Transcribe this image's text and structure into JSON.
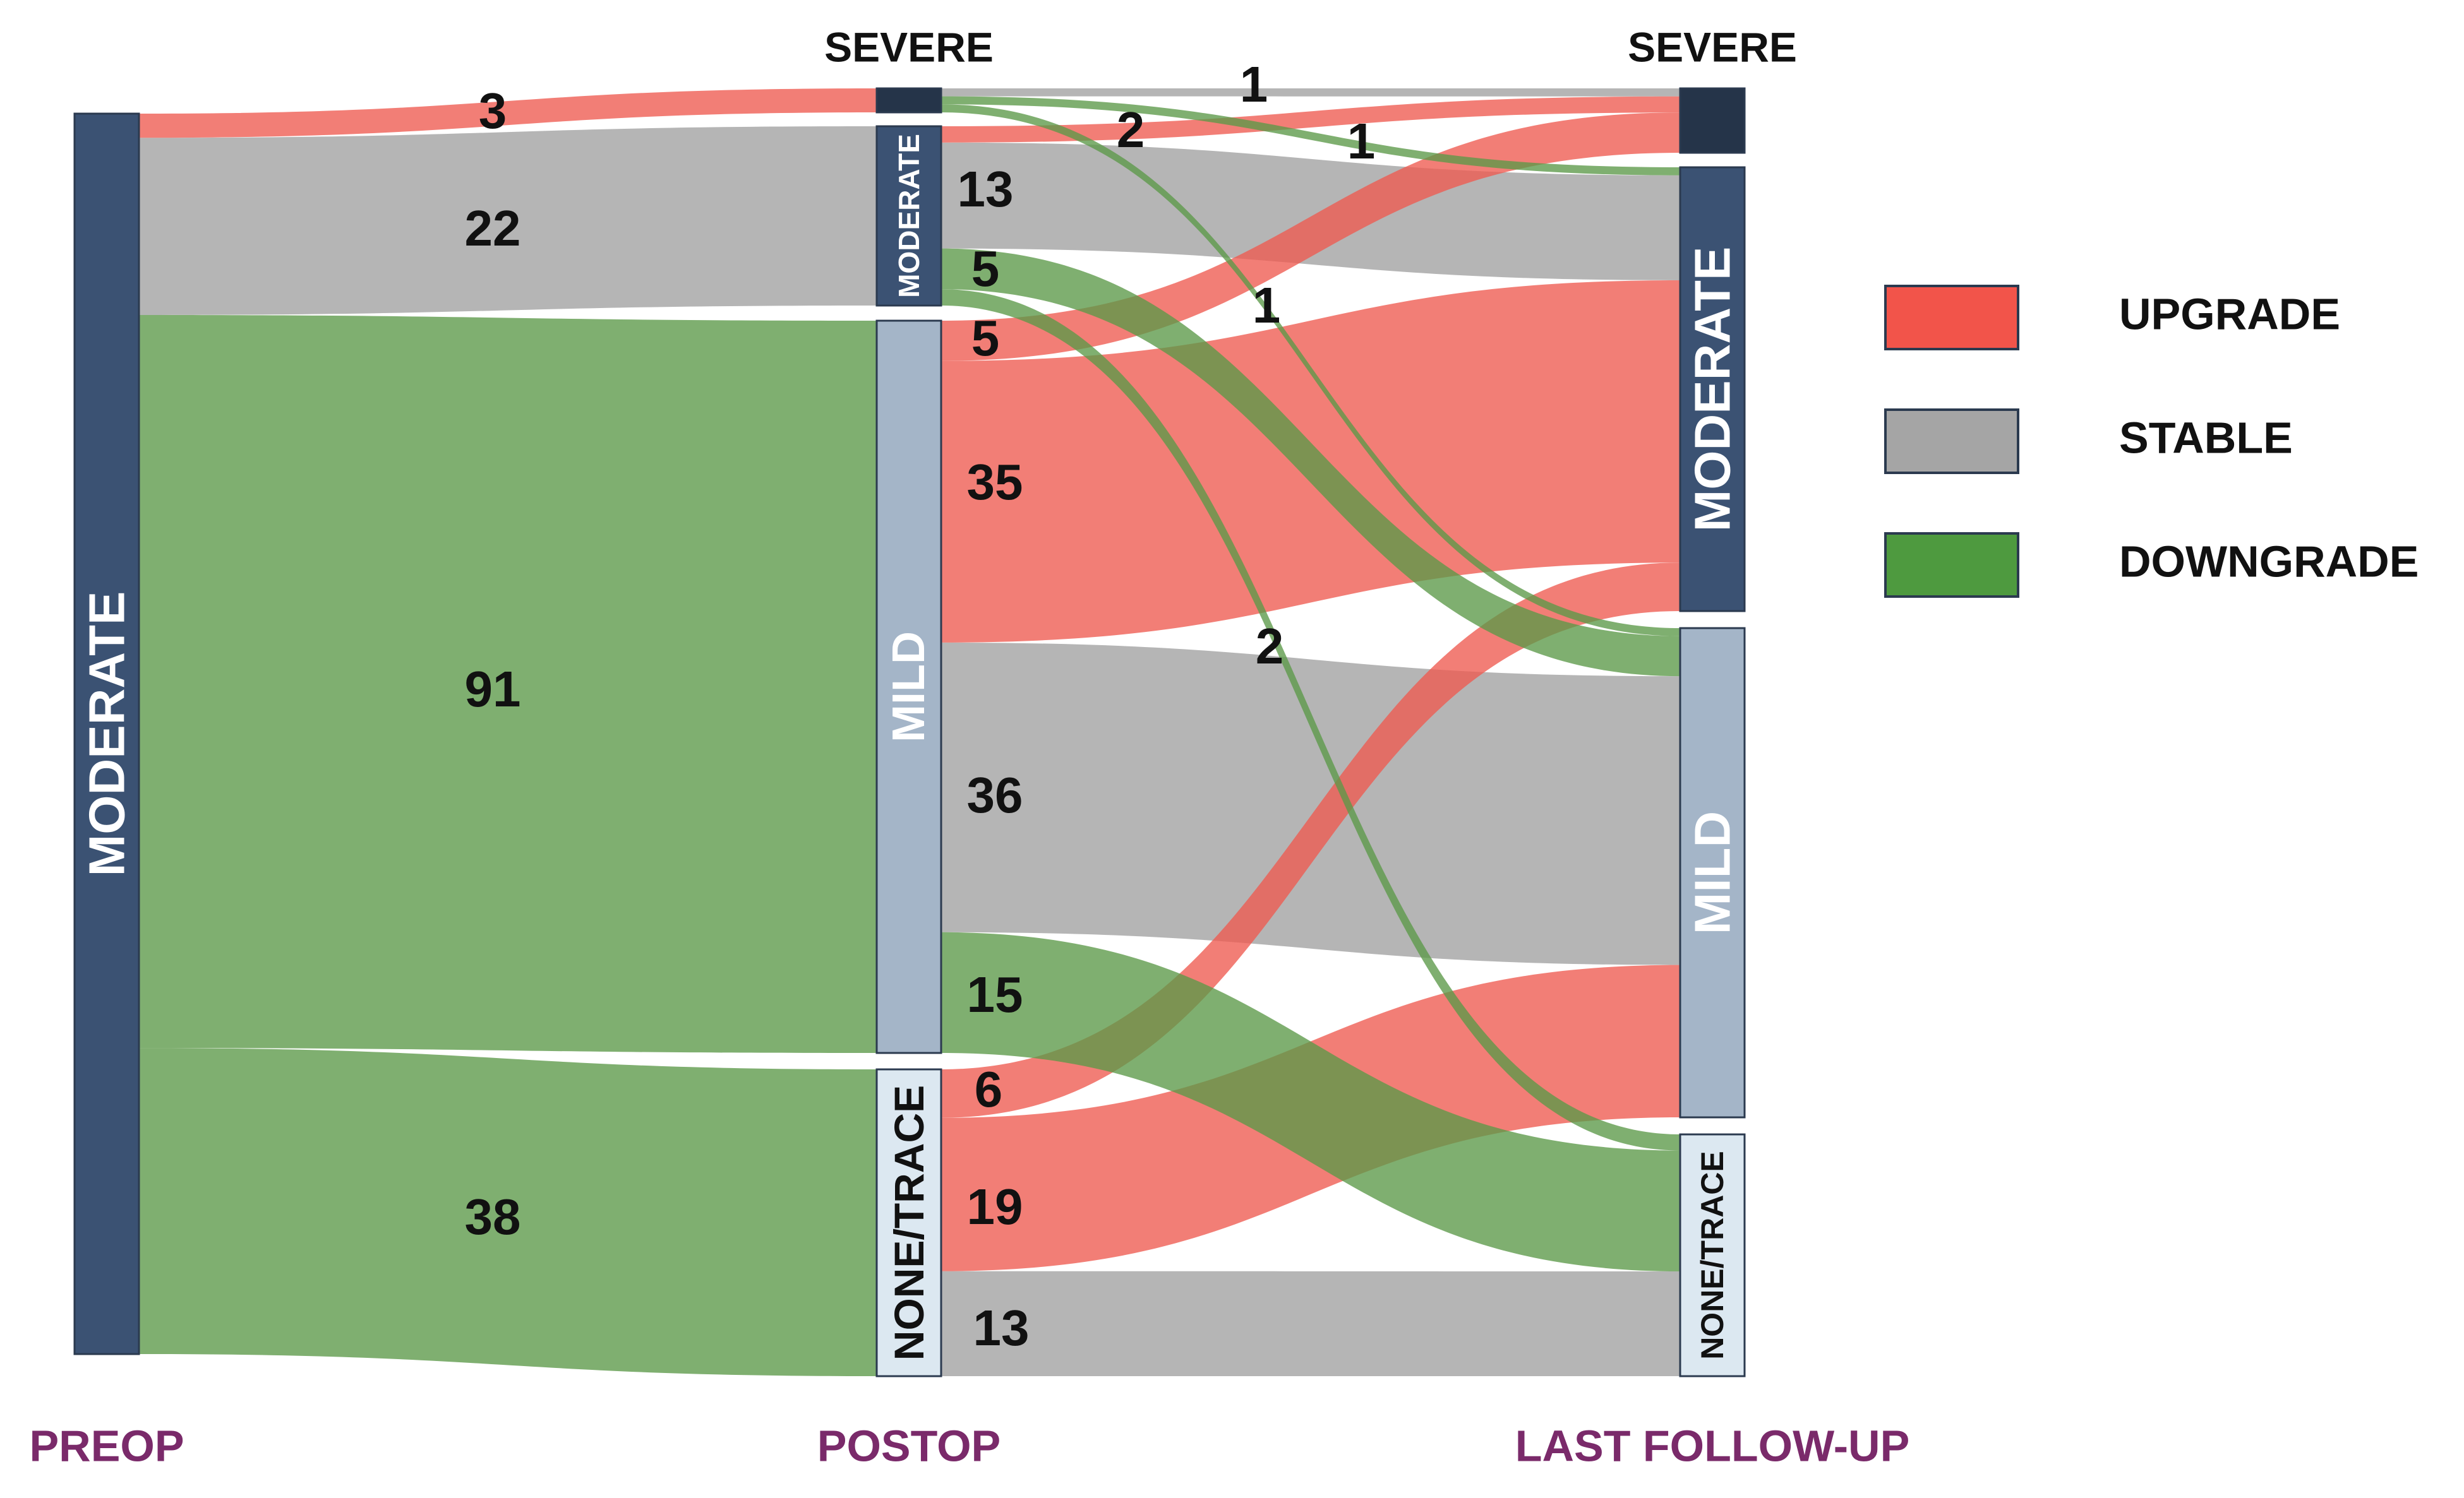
{
  "stages": [
    {
      "id": "preop",
      "label": "PREOP"
    },
    {
      "id": "postop",
      "label": "POSTOP"
    },
    {
      "id": "last",
      "label": "LAST FOLLOW-UP"
    }
  ],
  "nodes": {
    "preop_moderate": {
      "stage": "preop",
      "label": "MODERATE",
      "value": 154,
      "color": "#3b5273",
      "text_color": "#ffffff"
    },
    "post_severe": {
      "stage": "postop",
      "label": "SEVERE",
      "value": 3,
      "color": "#253449",
      "text_color": "#111111"
    },
    "post_moderate": {
      "stage": "postop",
      "label": "MODERATE",
      "value": 22,
      "color": "#3b5273",
      "text_color": "#ffffff"
    },
    "post_mild": {
      "stage": "postop",
      "label": "MILD",
      "value": 91,
      "color": "#a4b5c8",
      "text_color": "#ffffff"
    },
    "post_none": {
      "stage": "postop",
      "label": "NONE/TRACE",
      "value": 38,
      "color": "#dce8f1",
      "text_color": "#111111"
    },
    "last_severe": {
      "stage": "last",
      "label": "SEVERE",
      "value": 8,
      "color": "#253449",
      "text_color": "#111111"
    },
    "last_moderate": {
      "stage": "last",
      "label": "MODERATE",
      "value": 55,
      "color": "#3b5273",
      "text_color": "#ffffff"
    },
    "last_mild": {
      "stage": "last",
      "label": "MILD",
      "value": 61,
      "color": "#a4b5c8",
      "text_color": "#ffffff"
    },
    "last_none": {
      "stage": "last",
      "label": "NONE/TRACE",
      "value": 30,
      "color": "#dce8f1",
      "text_color": "#111111"
    }
  },
  "flows": [
    {
      "source": "preop_moderate",
      "target": "post_severe",
      "value": 3,
      "type": "upgrade",
      "label": "3"
    },
    {
      "source": "preop_moderate",
      "target": "post_moderate",
      "value": 22,
      "type": "stable",
      "label": "22"
    },
    {
      "source": "preop_moderate",
      "target": "post_mild",
      "value": 91,
      "type": "downgrade",
      "label": "91"
    },
    {
      "source": "preop_moderate",
      "target": "post_none",
      "value": 38,
      "type": "downgrade",
      "label": "38"
    },
    {
      "source": "post_severe",
      "target": "last_severe",
      "value": 1,
      "type": "stable",
      "label": "1"
    },
    {
      "source": "post_severe",
      "target": "last_moderate",
      "value": 1,
      "type": "downgrade",
      "label": "1"
    },
    {
      "source": "post_severe",
      "target": "last_mild",
      "value": 1,
      "type": "downgrade",
      "label": "1"
    },
    {
      "source": "post_moderate",
      "target": "last_severe",
      "value": 2,
      "type": "upgrade",
      "label": "2"
    },
    {
      "source": "post_moderate",
      "target": "last_moderate",
      "value": 13,
      "type": "stable",
      "label": "13"
    },
    {
      "source": "post_moderate",
      "target": "last_mild",
      "value": 5,
      "type": "downgrade",
      "label": "5"
    },
    {
      "source": "post_moderate",
      "target": "last_none",
      "value": 2,
      "type": "downgrade",
      "label": "2"
    },
    {
      "source": "post_mild",
      "target": "last_severe",
      "value": 5,
      "type": "upgrade",
      "label": "5"
    },
    {
      "source": "post_mild",
      "target": "last_moderate",
      "value": 35,
      "type": "upgrade",
      "label": "35"
    },
    {
      "source": "post_mild",
      "target": "last_mild",
      "value": 36,
      "type": "stable",
      "label": "36"
    },
    {
      "source": "post_mild",
      "target": "last_none",
      "value": 15,
      "type": "downgrade",
      "label": "15"
    },
    {
      "source": "post_none",
      "target": "last_moderate",
      "value": 6,
      "type": "upgrade",
      "label": "6"
    },
    {
      "source": "post_none",
      "target": "last_mild",
      "value": 19,
      "type": "upgrade",
      "label": "19"
    },
    {
      "source": "post_none",
      "target": "last_none",
      "value": 13,
      "type": "stable",
      "label": "13"
    }
  ],
  "legend": [
    {
      "type": "upgrade",
      "label": "UPGRADE",
      "color": "#f2544a"
    },
    {
      "type": "stable",
      "label": "STABLE",
      "color": "#a5a5a5"
    },
    {
      "type": "downgrade",
      "label": "DOWNGRADE",
      "color": "#4e9a3f"
    }
  ],
  "flow_colors": {
    "upgrade": "#ee5a4f",
    "stable": "#a0a0a0",
    "downgrade": "#5b9848"
  }
}
